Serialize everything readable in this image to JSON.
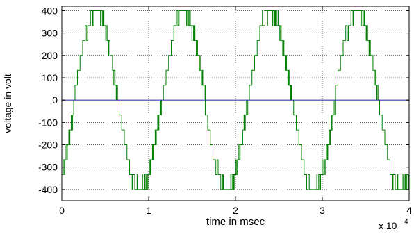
{
  "chart_data": {
    "type": "line",
    "title": "",
    "xlabel": "time in msec",
    "ylabel": "voltage in volt",
    "x_multiplier_label": "x 10",
    "x_multiplier_exponent": "4",
    "xlim": [
      0,
      4
    ],
    "ylim": [
      -450,
      420
    ],
    "x_ticks": [
      0,
      1,
      2,
      3,
      4
    ],
    "x_tick_labels": [
      "0",
      "1",
      "2",
      "3",
      "4"
    ],
    "y_ticks": [
      -400,
      -300,
      -200,
      -100,
      0,
      100,
      200,
      300,
      400
    ],
    "y_tick_labels": [
      "-400",
      "-300",
      "-200",
      "-100",
      "0",
      "100",
      "200",
      "300",
      "400"
    ],
    "grid": true,
    "period": 1,
    "step_levels": [
      0,
      66.7,
      133.3,
      200,
      266.7,
      333.3,
      400
    ],
    "amplitude": 400,
    "series": [
      {
        "color": "#007f00",
        "description_values": "multilevel stepped sine wave with PWM switching between adjacent levels, peak 400, period 1 (x10^4)"
      },
      {
        "color": "#3f3fbf",
        "x": [
          0,
          4
        ],
        "y": [
          0,
          0
        ]
      }
    ]
  }
}
